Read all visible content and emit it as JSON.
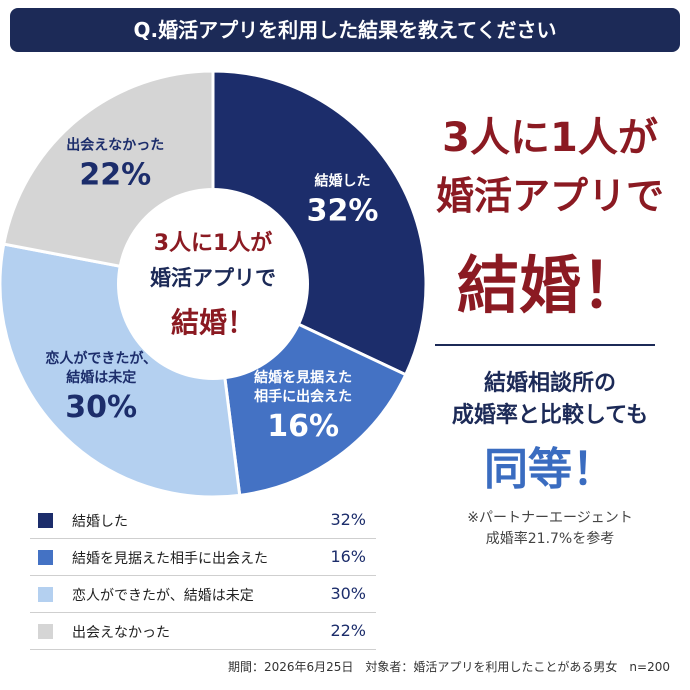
{
  "chart_data": {
    "type": "pie",
    "title": "Q.婚活アプリを利用した結果を教えてください",
    "categories": [
      "結婚した",
      "結婚を見据えた相手に出会えた",
      "恋人ができたが、結婚は未定",
      "出会えなかった"
    ],
    "values": [
      32,
      16,
      30,
      22
    ],
    "value_labels": [
      "32%",
      "16%",
      "30%",
      "22%"
    ],
    "colors": [
      "#1c2d6b",
      "#4472c4",
      "#b4d0f0",
      "#d5d5d5"
    ],
    "center_text": [
      "3人に1人が",
      "婚活アプリで",
      "結婚！"
    ]
  },
  "comparison": [
    "結婚相談所の",
    "成婚率と比較しても",
    "同等！"
  ],
  "note": [
    "※パートナーエージェント",
    "成婚率21.7%を参考"
  ],
  "footer": "期間：2026年6月25日　対象者：婚活アプリを利用したことがある男女　n=200"
}
